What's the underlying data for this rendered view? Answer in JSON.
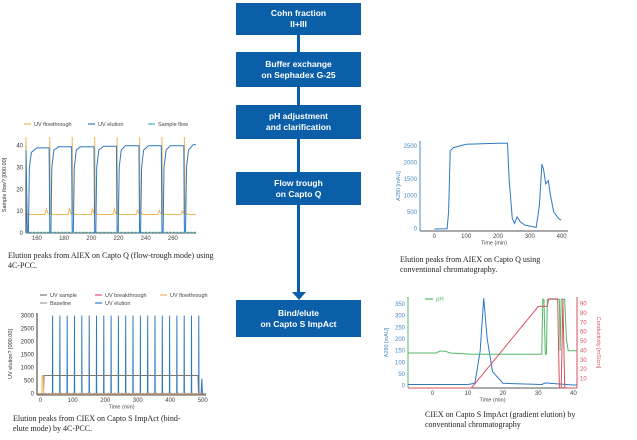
{
  "flow": {
    "steps": [
      {
        "line1": "Cohn fraction",
        "line2": "II+III"
      },
      {
        "line1": "Buffer exchange",
        "line2": "on Sephadex G-25"
      },
      {
        "line1": "pH adjustment",
        "line2": "and clarification"
      },
      {
        "line1": "Flow trough",
        "line2": "on Capto Q"
      },
      {
        "line1": "Bind/elute",
        "line2": "on Capto S ImpAct"
      }
    ],
    "color": "#0a5fa8"
  },
  "captions": {
    "c1": "Elution peaks from AIEX on Capto Q (flow-trough mode) using 4C-PCC.",
    "c2": "Elution peaks from CIEX on Capto S ImpAct (bind-elute mode) by 4C-PCC.",
    "c3": "Elution peaks from AIEX on Capto Q using conventional chromatography.",
    "c4": "CIEX on Capto S ImpAct (gradient elution) by conventional chromatography"
  },
  "chart_data": [
    {
      "id": "pcc-aiex",
      "type": "line",
      "title": "",
      "xlabel": "",
      "ylabel": "Sample flow? [000.00]",
      "xlim": [
        152,
        277
      ],
      "ylim": [
        0,
        44
      ],
      "xticks": [
        160,
        180,
        200,
        220,
        240,
        260
      ],
      "yticks": [
        0,
        10,
        20,
        30,
        40
      ],
      "legend_position": "top",
      "series": [
        {
          "name": "UV flowthrough",
          "color": "#f0b65a",
          "dash": false,
          "points": [
            [
              152,
              44
            ],
            [
              152.6,
              9
            ],
            [
              154,
              8.5
            ],
            [
              166,
              8.5
            ],
            [
              167,
              11
            ],
            [
              168,
              9
            ],
            [
              169.3,
              8.5
            ],
            [
              169.5,
              44
            ],
            [
              170,
              9
            ],
            [
              172,
              8.5
            ],
            [
              183,
              8.5
            ],
            [
              184,
              11.5
            ],
            [
              185,
              9
            ],
            [
              185.8,
              8.5
            ],
            [
              186,
              44
            ],
            [
              186.5,
              9
            ],
            [
              188,
              8.5
            ],
            [
              200,
              8.5
            ],
            [
              201,
              11
            ],
            [
              202,
              9
            ],
            [
              202.3,
              8.5
            ],
            [
              202.5,
              44
            ],
            [
              203,
              9
            ],
            [
              205,
              8.5
            ],
            [
              216,
              8.5
            ],
            [
              217,
              11
            ],
            [
              218,
              9
            ],
            [
              218.8,
              8.5
            ],
            [
              219,
              44
            ],
            [
              219.5,
              9
            ],
            [
              221,
              8.5
            ],
            [
              233,
              8.5
            ],
            [
              234,
              10.5
            ],
            [
              235,
              9
            ],
            [
              235.3,
              8.5
            ],
            [
              235.5,
              44
            ],
            [
              236,
              9
            ],
            [
              238,
              8.5
            ],
            [
              249,
              8.5
            ],
            [
              250,
              10.5
            ],
            [
              251,
              9
            ],
            [
              251.8,
              8.5
            ],
            [
              252,
              44
            ],
            [
              252.5,
              9
            ],
            [
              254,
              8.5
            ],
            [
              266,
              8.5
            ],
            [
              267,
              10
            ],
            [
              268,
              9
            ],
            [
              268.3,
              8.5
            ],
            [
              268.5,
              44
            ],
            [
              269,
              9
            ],
            [
              271,
              8.5
            ],
            [
              277,
              8.5
            ]
          ]
        },
        {
          "name": "UV elution",
          "color": "#2e78c2",
          "dash": false,
          "points": [
            [
              152,
              38
            ],
            [
              153,
              0
            ],
            [
              153.8,
              0
            ],
            [
              154.5,
              30
            ],
            [
              156,
              37
            ],
            [
              160,
              39
            ],
            [
              169,
              39
            ],
            [
              169.5,
              0
            ],
            [
              170.3,
              0
            ],
            [
              171,
              30
            ],
            [
              172.5,
              38
            ],
            [
              176,
              39.5
            ],
            [
              185.5,
              39.5
            ],
            [
              186,
              0
            ],
            [
              186.8,
              0
            ],
            [
              187.5,
              30
            ],
            [
              189,
              38
            ],
            [
              192,
              39.5
            ],
            [
              202,
              39.5
            ],
            [
              202.5,
              0
            ],
            [
              203.3,
              0
            ],
            [
              204,
              30
            ],
            [
              205.5,
              38
            ],
            [
              209,
              39.8
            ],
            [
              218.5,
              39.8
            ],
            [
              219,
              0
            ],
            [
              219.8,
              0
            ],
            [
              220.5,
              30
            ],
            [
              222,
              38
            ],
            [
              225,
              40
            ],
            [
              235,
              40
            ],
            [
              235.5,
              0
            ],
            [
              236.3,
              0
            ],
            [
              237,
              30
            ],
            [
              238.5,
              38
            ],
            [
              242,
              40
            ],
            [
              251.5,
              40
            ],
            [
              252,
              0
            ],
            [
              252.8,
              0
            ],
            [
              253.5,
              30
            ],
            [
              255,
              38
            ],
            [
              258,
              40
            ],
            [
              268,
              40
            ],
            [
              268.5,
              0
            ],
            [
              269.3,
              0
            ],
            [
              270,
              30
            ],
            [
              271.5,
              38
            ],
            [
              275,
              40.5
            ],
            [
              277,
              40.5
            ]
          ]
        },
        {
          "name": "Sample flow",
          "color": "#3bb3c3",
          "dash": true,
          "points": [
            [
              152,
              0.3
            ],
            [
              277,
              0.3
            ]
          ]
        }
      ]
    },
    {
      "id": "pcc-ciex",
      "type": "line",
      "title": "",
      "xlabel": "Time (min)",
      "ylabel": "UV elution? [000.00]",
      "xlim": [
        -10,
        510
      ],
      "ylim": [
        -50,
        3100
      ],
      "xticks": [
        0,
        100,
        200,
        300,
        400,
        500
      ],
      "yticks": [
        0,
        500,
        1000,
        1500,
        2000,
        2500,
        3000
      ],
      "legend_position": "top",
      "legend": [
        "UV sample",
        "UV breakthrough",
        "UV flowthrough",
        "Baseline",
        "UV elution"
      ],
      "peak_times": [
        38,
        60.5,
        83,
        105.5,
        128,
        150.5,
        173,
        195.5,
        218,
        240.5,
        263,
        285.5,
        308,
        330.5,
        353,
        375.5,
        398,
        420.5,
        443,
        465.5,
        488
      ],
      "peak_height": 3000,
      "series": [
        {
          "name": "UV sample",
          "color": "#7a7a7a",
          "points": [
            [
              -10,
              0
            ],
            [
              10,
              0
            ],
            [
              12,
              700
            ],
            [
              485,
              700
            ],
            [
              487,
              0
            ],
            [
              510,
              0
            ]
          ]
        },
        {
          "name": "UV breakthrough",
          "color": "#e0506a",
          "points": [
            [
              -10,
              0
            ],
            [
              510,
              0
            ]
          ]
        },
        {
          "name": "UV flowthrough",
          "color": "#f0b65a",
          "points": [
            [
              -10,
              0
            ],
            [
              5,
              0
            ],
            [
              6,
              700
            ],
            [
              9,
              700
            ],
            [
              10,
              0
            ],
            [
              510,
              0
            ]
          ]
        },
        {
          "name": "Baseline",
          "color": "#9aa0a8",
          "dash": true,
          "points": [
            [
              -10,
              10
            ],
            [
              510,
              10
            ]
          ]
        },
        {
          "name": "UV elution",
          "color": "#2e78c2",
          "points": [
            [
              495,
              0
            ],
            [
              497,
              580
            ],
            [
              499,
              0
            ]
          ]
        }
      ]
    },
    {
      "id": "conv-aiex",
      "type": "line",
      "title": "",
      "xlabel": "Time (min)",
      "ylabel": "A280 [mAU]",
      "xlim": [
        -45,
        420
      ],
      "ylim": [
        -80,
        2650
      ],
      "xticks": [
        0,
        100,
        200,
        300,
        400
      ],
      "yticks": [
        0,
        500,
        1000,
        1500,
        2000,
        2500
      ],
      "series": [
        {
          "name": "A280",
          "color": "#2e78c2",
          "points": [
            [
              0,
              -20
            ],
            [
              40,
              -10
            ],
            [
              45,
              500
            ],
            [
              50,
              2350
            ],
            [
              60,
              2450
            ],
            [
              100,
              2550
            ],
            [
              200,
              2580
            ],
            [
              230,
              2580
            ],
            [
              235,
              1500
            ],
            [
              245,
              300
            ],
            [
              252,
              150
            ],
            [
              260,
              350
            ],
            [
              270,
              200
            ],
            [
              285,
              100
            ],
            [
              310,
              50
            ],
            [
              320,
              30
            ],
            [
              330,
              700
            ],
            [
              338,
              1950
            ],
            [
              343,
              1800
            ],
            [
              350,
              1350
            ],
            [
              358,
              1450
            ],
            [
              365,
              1000
            ],
            [
              375,
              500
            ],
            [
              390,
              300
            ],
            [
              398,
              250
            ]
          ]
        }
      ]
    },
    {
      "id": "conv-ciex",
      "type": "line",
      "title": "",
      "xlabel": "Time (min)",
      "ylabel": "A280 [mAU]",
      "ylabel_right": "Conductivity [mS/cm]",
      "xlim": [
        -7,
        41
      ],
      "ylim": [
        -10,
        380
      ],
      "ylim_right": [
        0,
        97
      ],
      "xticks": [
        0,
        10,
        20,
        30,
        40
      ],
      "yticks": [
        0,
        50,
        100,
        150,
        200,
        250,
        300,
        350
      ],
      "yticks_right": [
        10,
        20,
        30,
        40,
        50,
        60,
        70,
        80,
        90
      ],
      "legend": [
        "pH"
      ],
      "series": [
        {
          "name": "A280",
          "color": "#2e78c2",
          "axis": "left",
          "points": [
            [
              -7,
              5
            ],
            [
              10,
              5
            ],
            [
              12,
              10
            ],
            [
              13.5,
              150
            ],
            [
              14.5,
              375
            ],
            [
              15.5,
              200
            ],
            [
              17,
              60
            ],
            [
              20,
              10
            ],
            [
              31,
              5
            ],
            [
              32,
              12
            ],
            [
              35,
              8
            ],
            [
              40,
              3
            ],
            [
              41,
              3
            ]
          ]
        },
        {
          "name": "pH",
          "color": "#55b86a",
          "axis": "left",
          "points": [
            [
              -7,
              140
            ],
            [
              1,
              140
            ],
            [
              2,
              148
            ],
            [
              3.5,
              148
            ],
            [
              5,
              140
            ],
            [
              11,
              135
            ],
            [
              31,
              135
            ],
            [
              31.3,
              370
            ],
            [
              31.6,
              370
            ],
            [
              32,
              135
            ],
            [
              32.3,
              135
            ],
            [
              32.6,
              370
            ],
            [
              36,
              370
            ],
            [
              36.2,
              150
            ],
            [
              36.5,
              370
            ],
            [
              37.5,
              370
            ],
            [
              38,
              200
            ],
            [
              38.5,
              150
            ],
            [
              41,
              150
            ]
          ]
        },
        {
          "name": "Conductivity",
          "color": "#d8505e",
          "axis": "right",
          "points": [
            [
              -7,
              0
            ],
            [
              11,
              0
            ],
            [
              30,
              87
            ],
            [
              31,
              87
            ],
            [
              32.5,
              87
            ],
            [
              33,
              95
            ],
            [
              35.5,
              95
            ],
            [
              36,
              0
            ],
            [
              36.5,
              0
            ],
            [
              37,
              95
            ],
            [
              37.5,
              0
            ],
            [
              41,
              0
            ]
          ]
        }
      ]
    }
  ]
}
